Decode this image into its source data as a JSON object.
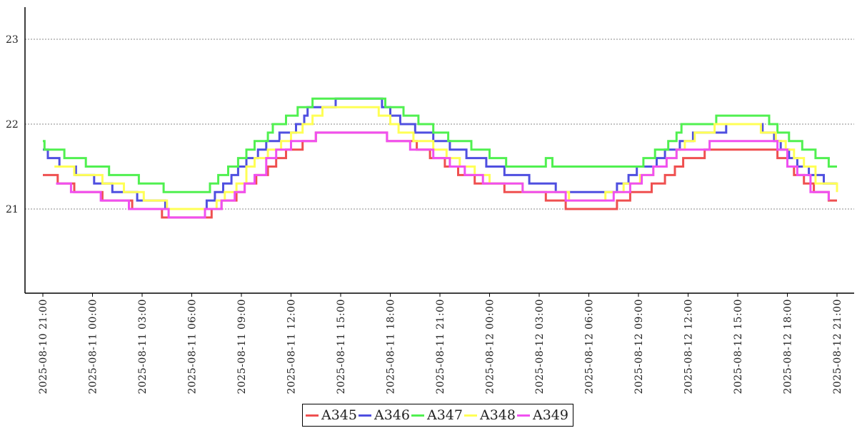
{
  "chart_data": {
    "type": "line",
    "title": "",
    "xlabel": "",
    "ylabel": "",
    "ylim": [
      20,
      23.4
    ],
    "yticks": [
      21,
      22,
      23
    ],
    "grid": "horizontal-dotted",
    "legend_position": "bottom-center",
    "x_tick_labels": [
      "2025-08-10 21:00",
      "2025-08-11 00:00",
      "2025-08-11 03:00",
      "2025-08-11 06:00",
      "2025-08-11 09:00",
      "2025-08-11 12:00",
      "2025-08-11 15:00",
      "2025-08-11 18:00",
      "2025-08-11 21:00",
      "2025-08-12 00:00",
      "2025-08-12 03:00",
      "2025-08-12 06:00",
      "2025-08-12 09:00",
      "2025-08-12 12:00",
      "2025-08-12 15:00",
      "2025-08-12 18:00",
      "2025-08-12 21:00"
    ],
    "x_tick_hours": [
      0,
      3,
      6,
      9,
      12,
      15,
      18,
      21,
      24,
      27,
      30,
      33,
      36,
      39,
      42,
      45,
      48
    ],
    "x_unit_note": "",
    "series": [
      {
        "name": "A345",
        "color": "#ef5050",
        "points": [
          [
            0,
            21.4
          ],
          [
            0.9,
            21.3
          ],
          [
            1.9,
            21.2
          ],
          [
            3.6,
            21.1
          ],
          [
            5.4,
            21.0
          ],
          [
            7.2,
            20.9
          ],
          [
            10.2,
            21.0
          ],
          [
            10.8,
            21.1
          ],
          [
            11.7,
            21.2
          ],
          [
            12.2,
            21.3
          ],
          [
            12.9,
            21.4
          ],
          [
            13.6,
            21.5
          ],
          [
            14.1,
            21.6
          ],
          [
            14.7,
            21.7
          ],
          [
            15.7,
            21.8
          ],
          [
            16.5,
            21.9
          ],
          [
            20.8,
            21.8
          ],
          [
            22.6,
            21.7
          ],
          [
            23.4,
            21.6
          ],
          [
            24.3,
            21.5
          ],
          [
            25.1,
            21.4
          ],
          [
            26.1,
            21.3
          ],
          [
            27.9,
            21.2
          ],
          [
            30.4,
            21.1
          ],
          [
            31.6,
            21.0
          ],
          [
            34.7,
            21.1
          ],
          [
            35.5,
            21.2
          ],
          [
            36.8,
            21.3
          ],
          [
            37.6,
            21.4
          ],
          [
            38.2,
            21.5
          ],
          [
            38.7,
            21.6
          ],
          [
            40.0,
            21.7
          ],
          [
            44.4,
            21.6
          ],
          [
            45.0,
            21.5
          ],
          [
            45.4,
            21.4
          ],
          [
            46.0,
            21.3
          ],
          [
            46.6,
            21.2
          ],
          [
            47.5,
            21.1
          ],
          [
            48.0,
            21.1
          ]
        ]
      },
      {
        "name": "A346",
        "color": "#4f4fe0",
        "points": [
          [
            0,
            21.7
          ],
          [
            0.3,
            21.6
          ],
          [
            1.0,
            21.5
          ],
          [
            2.0,
            21.4
          ],
          [
            3.1,
            21.3
          ],
          [
            4.2,
            21.2
          ],
          [
            5.7,
            21.1
          ],
          [
            7.4,
            21.0
          ],
          [
            9.9,
            21.1
          ],
          [
            10.4,
            21.2
          ],
          [
            10.9,
            21.3
          ],
          [
            11.4,
            21.4
          ],
          [
            11.8,
            21.5
          ],
          [
            12.3,
            21.6
          ],
          [
            13.0,
            21.7
          ],
          [
            13.5,
            21.8
          ],
          [
            14.3,
            21.9
          ],
          [
            15.3,
            22.0
          ],
          [
            15.8,
            22.1
          ],
          [
            16.0,
            22.2
          ],
          [
            17.7,
            22.3
          ],
          [
            20.5,
            22.2
          ],
          [
            21.0,
            22.1
          ],
          [
            21.6,
            22.0
          ],
          [
            22.5,
            21.9
          ],
          [
            23.6,
            21.8
          ],
          [
            24.6,
            21.7
          ],
          [
            25.6,
            21.6
          ],
          [
            26.8,
            21.5
          ],
          [
            27.9,
            21.4
          ],
          [
            29.4,
            21.3
          ],
          [
            31.0,
            21.2
          ],
          [
            32.6,
            21.2
          ],
          [
            34.7,
            21.3
          ],
          [
            35.4,
            21.4
          ],
          [
            35.9,
            21.5
          ],
          [
            37.1,
            21.6
          ],
          [
            37.6,
            21.7
          ],
          [
            38.5,
            21.8
          ],
          [
            39.3,
            21.9
          ],
          [
            41.3,
            22.0
          ],
          [
            43.5,
            21.9
          ],
          [
            44.2,
            21.8
          ],
          [
            44.6,
            21.7
          ],
          [
            45.1,
            21.6
          ],
          [
            45.6,
            21.5
          ],
          [
            46.3,
            21.4
          ],
          [
            47.2,
            21.3
          ],
          [
            48.0,
            21.3
          ]
        ]
      },
      {
        "name": "A347",
        "color": "#50f050",
        "points": [
          [
            0,
            21.8
          ],
          [
            0.1,
            21.7
          ],
          [
            1.3,
            21.6
          ],
          [
            2.6,
            21.5
          ],
          [
            4.0,
            21.4
          ],
          [
            5.8,
            21.3
          ],
          [
            7.3,
            21.2
          ],
          [
            10.1,
            21.3
          ],
          [
            10.6,
            21.4
          ],
          [
            11.2,
            21.5
          ],
          [
            11.8,
            21.6
          ],
          [
            12.3,
            21.7
          ],
          [
            12.8,
            21.8
          ],
          [
            13.6,
            21.9
          ],
          [
            13.9,
            22.0
          ],
          [
            14.7,
            22.1
          ],
          [
            15.4,
            22.2
          ],
          [
            16.3,
            22.3
          ],
          [
            20.7,
            22.2
          ],
          [
            21.8,
            22.1
          ],
          [
            22.7,
            22.0
          ],
          [
            23.6,
            21.9
          ],
          [
            24.5,
            21.8
          ],
          [
            25.9,
            21.7
          ],
          [
            27.0,
            21.6
          ],
          [
            28.0,
            21.5
          ],
          [
            30.4,
            21.6
          ],
          [
            30.8,
            21.5
          ],
          [
            36.3,
            21.6
          ],
          [
            37.0,
            21.7
          ],
          [
            37.8,
            21.8
          ],
          [
            38.3,
            21.9
          ],
          [
            38.6,
            22.0
          ],
          [
            39.3,
            22.0
          ],
          [
            40.7,
            22.1
          ],
          [
            43.9,
            22.0
          ],
          [
            44.4,
            21.9
          ],
          [
            45.1,
            21.8
          ],
          [
            45.9,
            21.7
          ],
          [
            46.7,
            21.6
          ],
          [
            47.5,
            21.5
          ],
          [
            48.0,
            21.5
          ]
        ]
      },
      {
        "name": "A348",
        "color": "#ffff55",
        "points": [
          [
            0.7,
            21.5
          ],
          [
            1.9,
            21.4
          ],
          [
            3.6,
            21.3
          ],
          [
            4.9,
            21.2
          ],
          [
            6.1,
            21.1
          ],
          [
            7.5,
            21.0
          ],
          [
            10.5,
            21.1
          ],
          [
            11.0,
            21.2
          ],
          [
            11.7,
            21.3
          ],
          [
            12.3,
            21.5
          ],
          [
            12.8,
            21.6
          ],
          [
            13.6,
            21.7
          ],
          [
            14.4,
            21.8
          ],
          [
            15.0,
            21.9
          ],
          [
            15.7,
            22.0
          ],
          [
            16.3,
            22.1
          ],
          [
            16.9,
            22.2
          ],
          [
            20.3,
            22.1
          ],
          [
            21.0,
            22.0
          ],
          [
            21.5,
            21.9
          ],
          [
            22.4,
            21.8
          ],
          [
            23.6,
            21.7
          ],
          [
            24.4,
            21.6
          ],
          [
            25.2,
            21.5
          ],
          [
            26.1,
            21.4
          ],
          [
            27.0,
            21.3
          ],
          [
            29.0,
            21.2
          ],
          [
            31.8,
            21.1
          ],
          [
            34.0,
            21.2
          ],
          [
            35.1,
            21.3
          ],
          [
            36.1,
            21.4
          ],
          [
            36.9,
            21.5
          ],
          [
            37.7,
            21.6
          ],
          [
            38.3,
            21.7
          ],
          [
            38.8,
            21.8
          ],
          [
            39.4,
            21.9
          ],
          [
            40.6,
            22.0
          ],
          [
            43.4,
            21.9
          ],
          [
            44.3,
            21.8
          ],
          [
            44.9,
            21.7
          ],
          [
            45.4,
            21.6
          ],
          [
            46.0,
            21.5
          ],
          [
            46.7,
            21.3
          ],
          [
            48.0,
            21.2
          ]
        ]
      },
      {
        "name": "A349",
        "color": "#f050f0",
        "points": [
          [
            0.8,
            21.3
          ],
          [
            1.7,
            21.2
          ],
          [
            3.5,
            21.1
          ],
          [
            5.2,
            21.0
          ],
          [
            7.6,
            20.9
          ],
          [
            9.8,
            21.0
          ],
          [
            10.8,
            21.1
          ],
          [
            11.6,
            21.2
          ],
          [
            12.2,
            21.3
          ],
          [
            12.8,
            21.4
          ],
          [
            13.5,
            21.6
          ],
          [
            14.1,
            21.7
          ],
          [
            15.0,
            21.8
          ],
          [
            16.5,
            21.9
          ],
          [
            20.8,
            21.8
          ],
          [
            22.2,
            21.7
          ],
          [
            23.6,
            21.6
          ],
          [
            24.6,
            21.5
          ],
          [
            25.5,
            21.4
          ],
          [
            26.6,
            21.3
          ],
          [
            29.0,
            21.2
          ],
          [
            30.7,
            21.2
          ],
          [
            31.6,
            21.1
          ],
          [
            34.5,
            21.2
          ],
          [
            35.5,
            21.3
          ],
          [
            36.2,
            21.4
          ],
          [
            36.9,
            21.5
          ],
          [
            37.7,
            21.6
          ],
          [
            38.3,
            21.7
          ],
          [
            40.3,
            21.8
          ],
          [
            44.4,
            21.7
          ],
          [
            45.0,
            21.5
          ],
          [
            45.6,
            21.4
          ],
          [
            46.4,
            21.2
          ],
          [
            47.5,
            21.1
          ]
        ]
      }
    ]
  },
  "legend": {
    "items": [
      {
        "label": "A345",
        "color": "#ef5050"
      },
      {
        "label": "A346",
        "color": "#4f4fe0"
      },
      {
        "label": "A347",
        "color": "#50f050"
      },
      {
        "label": "A348",
        "color": "#ffff55"
      },
      {
        "label": "A349",
        "color": "#f050f0"
      }
    ]
  }
}
